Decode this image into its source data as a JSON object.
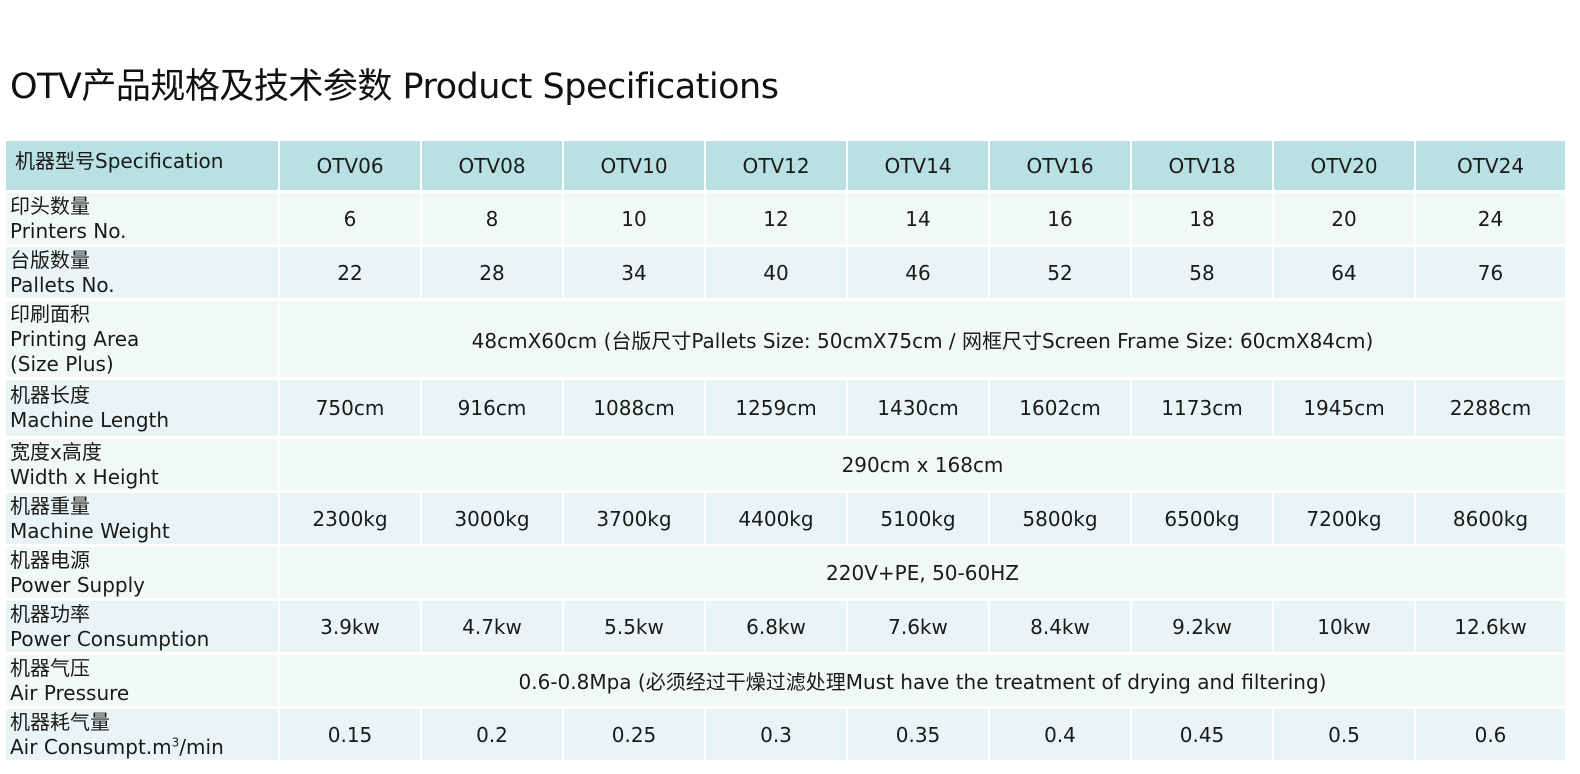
{
  "title": "OTV产品规格及技术参数 Product Specifications",
  "header": {
    "first": "机器型号Specification",
    "models": [
      "OTV06",
      "OTV08",
      "OTV10",
      "OTV12",
      "OTV14",
      "OTV16",
      "OTV18",
      "OTV20",
      "OTV24"
    ]
  },
  "rows": {
    "printers": {
      "cn": "印头数量",
      "en": "Printers No.",
      "values": [
        "6",
        "8",
        "10",
        "12",
        "14",
        "16",
        "18",
        "20",
        "24"
      ]
    },
    "pallets": {
      "cn": "台版数量",
      "en": "Pallets No.",
      "values": [
        "22",
        "28",
        "34",
        "40",
        "46",
        "52",
        "58",
        "64",
        "76"
      ]
    },
    "printing_area": {
      "cn": "印刷面积",
      "en": "Printing Area",
      "en2": "(Size Plus)",
      "value": "48cmX60cm (台版尺寸Pallets Size: 50cmX75cm / 网框尺寸Screen Frame Size: 60cmX84cm)"
    },
    "length": {
      "cn": "机器长度",
      "en": "Machine Length",
      "values": [
        "750cm",
        "916cm",
        "1088cm",
        "1259cm",
        "1430cm",
        "1602cm",
        "1173cm",
        "1945cm",
        "2288cm"
      ]
    },
    "width_height": {
      "cn": "宽度x高度",
      "en": "Width x Height",
      "value": "290cm x 168cm"
    },
    "weight": {
      "cn": "机器重量",
      "en": "Machine Weight",
      "values": [
        "2300kg",
        "3000kg",
        "3700kg",
        "4400kg",
        "5100kg",
        "5800kg",
        "6500kg",
        "7200kg",
        "8600kg"
      ]
    },
    "power_supply": {
      "cn": "机器电源",
      "en": "Power Supply",
      "value": "220V+PE, 50-60HZ"
    },
    "power_consumption": {
      "cn": "机器功率",
      "en": "Power Consumption",
      "values": [
        "3.9kw",
        "4.7kw",
        "5.5kw",
        "6.8kw",
        "7.6kw",
        "8.4kw",
        "9.2kw",
        "10kw",
        "12.6kw"
      ]
    },
    "air_pressure": {
      "cn": "机器气压",
      "en": "Air Pressure",
      "value": "0.6-0.8Mpa (必须经过干燥过滤处理Must have the treatment of drying and filtering)"
    },
    "air_consumption": {
      "cn": "机器耗气量",
      "en_pre": "Air Consumpt.m",
      "en_sup": "3",
      "en_post": "/min",
      "values": [
        "0.15",
        "0.2",
        "0.25",
        "0.3",
        "0.35",
        "0.4",
        "0.45",
        "0.5",
        "0.6"
      ]
    }
  }
}
